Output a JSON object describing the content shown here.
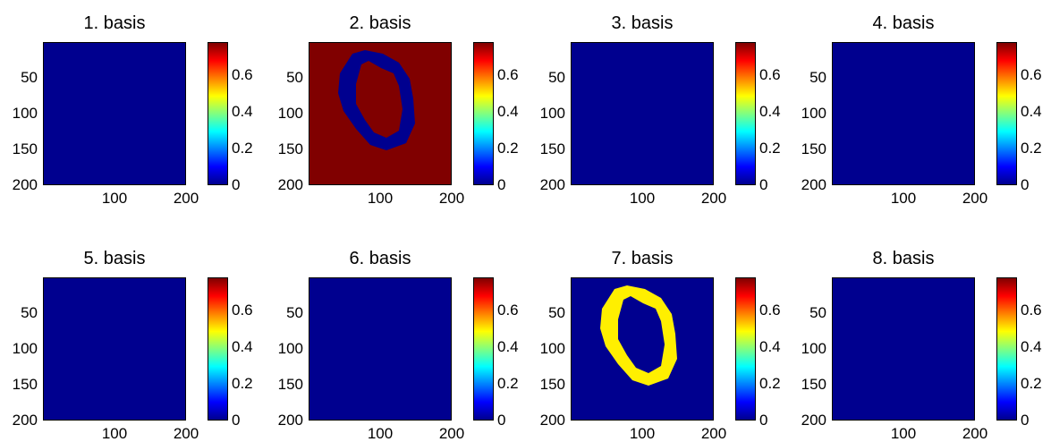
{
  "colors": {
    "background": "#00008f",
    "dark_red": "#800000",
    "yellow": "#ffff00"
  },
  "chart_data": [
    {
      "type": "heatmap",
      "title": "1. basis",
      "yticks": [
        "50",
        "100",
        "150",
        "200"
      ],
      "xticks": [
        "100",
        "200"
      ],
      "xlim": [
        0,
        200
      ],
      "ylim": [
        0,
        200
      ],
      "colorbar_ticks": [
        "0.6",
        "0.4",
        "0.2",
        "0"
      ],
      "clim": [
        0,
        0.78
      ],
      "background_value": 0,
      "ring": null
    },
    {
      "type": "heatmap",
      "title": "2. basis",
      "yticks": [
        "50",
        "100",
        "150",
        "200"
      ],
      "xticks": [
        "100",
        "200"
      ],
      "xlim": [
        0,
        200
      ],
      "ylim": [
        0,
        200
      ],
      "colorbar_ticks": [
        "0.6",
        "0.4",
        "0.2",
        "0"
      ],
      "clim": [
        0,
        0.78
      ],
      "background_value": 0.78,
      "ring": {
        "value": 0
      }
    },
    {
      "type": "heatmap",
      "title": "3. basis",
      "yticks": [
        "50",
        "100",
        "150",
        "200"
      ],
      "xticks": [
        "100",
        "200"
      ],
      "xlim": [
        0,
        200
      ],
      "ylim": [
        0,
        200
      ],
      "colorbar_ticks": [
        "0.6",
        "0.4",
        "0.2",
        "0"
      ],
      "clim": [
        0,
        0.78
      ],
      "background_value": 0,
      "ring": null
    },
    {
      "type": "heatmap",
      "title": "4. basis",
      "yticks": [
        "50",
        "100",
        "150",
        "200"
      ],
      "xticks": [
        "100",
        "200"
      ],
      "xlim": [
        0,
        200
      ],
      "ylim": [
        0,
        200
      ],
      "colorbar_ticks": [
        "0.6",
        "0.4",
        "0.2",
        "0"
      ],
      "clim": [
        0,
        0.78
      ],
      "background_value": 0,
      "ring": null
    },
    {
      "type": "heatmap",
      "title": "5. basis",
      "yticks": [
        "50",
        "100",
        "150",
        "200"
      ],
      "xticks": [
        "100",
        "200"
      ],
      "xlim": [
        0,
        200
      ],
      "ylim": [
        0,
        200
      ],
      "colorbar_ticks": [
        "0.6",
        "0.4",
        "0.2",
        "0"
      ],
      "clim": [
        0,
        0.78
      ],
      "background_value": 0,
      "ring": null
    },
    {
      "type": "heatmap",
      "title": "6. basis",
      "yticks": [
        "50",
        "100",
        "150",
        "200"
      ],
      "xticks": [
        "100",
        "200"
      ],
      "xlim": [
        0,
        200
      ],
      "ylim": [
        0,
        200
      ],
      "colorbar_ticks": [
        "0.6",
        "0.4",
        "0.2",
        "0"
      ],
      "clim": [
        0,
        0.78
      ],
      "background_value": 0,
      "ring": null
    },
    {
      "type": "heatmap",
      "title": "7. basis",
      "yticks": [
        "50",
        "100",
        "150",
        "200"
      ],
      "xticks": [
        "100",
        "200"
      ],
      "xlim": [
        0,
        200
      ],
      "ylim": [
        0,
        200
      ],
      "colorbar_ticks": [
        "0.6",
        "0.4",
        "0.2",
        "0"
      ],
      "clim": [
        0,
        0.78
      ],
      "background_value": 0,
      "ring": {
        "value": 0.5
      }
    },
    {
      "type": "heatmap",
      "title": "8. basis",
      "yticks": [
        "50",
        "100",
        "150",
        "200"
      ],
      "xticks": [
        "100",
        "200"
      ],
      "xlim": [
        0,
        200
      ],
      "ylim": [
        0,
        200
      ],
      "colorbar_ticks": [
        "0.6",
        "0.4",
        "0.2",
        "0"
      ],
      "clim": [
        0,
        0.78
      ],
      "background_value": 0,
      "ring": null
    }
  ]
}
